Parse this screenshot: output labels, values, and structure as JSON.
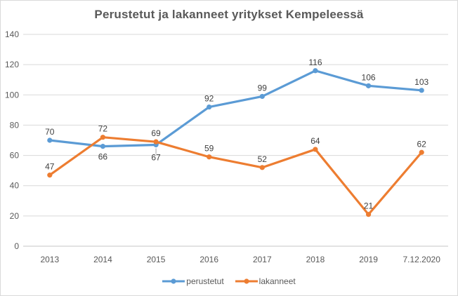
{
  "chart_data": {
    "type": "line",
    "title": "Perustetut ja lakanneet yritykset Kempeleessä",
    "categories": [
      "2013",
      "2014",
      "2015",
      "2016",
      "2017",
      "2018",
      "2019",
      "7.12.2020"
    ],
    "series": [
      {
        "name": "perustetut",
        "color": "#5B9BD5",
        "values": [
          70,
          66,
          67,
          92,
          99,
          116,
          106,
          103
        ],
        "label_positions": [
          "above",
          "below",
          "below-leader",
          "above",
          "above",
          "above",
          "above",
          "above"
        ]
      },
      {
        "name": "lakanneet",
        "color": "#ED7D31",
        "values": [
          47,
          72,
          69,
          59,
          52,
          64,
          21,
          62
        ],
        "label_positions": [
          "above",
          "above",
          "above",
          "above",
          "above",
          "above",
          "above",
          "above"
        ]
      }
    ],
    "xlabel": "",
    "ylabel": "",
    "ylim": [
      0,
      140
    ],
    "ytick_step": 20,
    "grid": "horizontal",
    "legend_position": "bottom",
    "marker": "circle",
    "colors": {
      "gridline": "#D9D9D9",
      "axis_line": "#C6C6C6",
      "axis_label": "#595959",
      "data_label": "#404040",
      "title": "#595959",
      "leader_line": "#A6A6A6",
      "border": "#D9D9D9",
      "background": "#FFFFFF"
    }
  }
}
